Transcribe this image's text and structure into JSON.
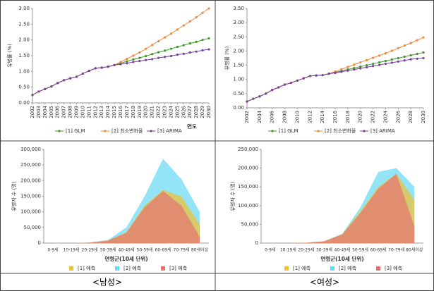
{
  "chart_data": [
    {
      "type": "line",
      "y_label": "유병률 (%)",
      "x_label": "연도",
      "x": [
        2002,
        2003,
        2004,
        2005,
        2006,
        2007,
        2008,
        2009,
        2010,
        2011,
        2012,
        2013,
        2014,
        2015,
        2016,
        2017,
        2018,
        2019,
        2020,
        2021,
        2022,
        2023,
        2024,
        2025,
        2026,
        2027,
        2028,
        2029,
        2030
      ],
      "xlim": [
        2002,
        2030
      ],
      "xticks": [
        2002,
        2003,
        2004,
        2005,
        2006,
        2007,
        2008,
        2009,
        2010,
        2011,
        2012,
        2013,
        2014,
        2015,
        2016,
        2017,
        2018,
        2019,
        2020,
        2021,
        2022,
        2023,
        2024,
        2025,
        2026,
        2027,
        2028,
        2029,
        2030
      ],
      "ylim": [
        0,
        3
      ],
      "yticks": [
        {
          "value": 0,
          "label": "0.00"
        },
        {
          "value": 0.5,
          "label": "0.50"
        },
        {
          "value": 1,
          "label": "1.00"
        },
        {
          "value": 1.5,
          "label": "1.50"
        },
        {
          "value": 2,
          "label": "2.00"
        },
        {
          "value": 2.5,
          "label": "2.50"
        },
        {
          "value": 3,
          "label": "3.00"
        }
      ],
      "series": [
        {
          "name": "[1] GLM",
          "color": "#3a9d23",
          "values": [
            0.25,
            0.36,
            0.44,
            0.52,
            0.63,
            0.72,
            0.78,
            0.83,
            0.93,
            1.02,
            1.1,
            1.12,
            1.15,
            1.2,
            1.26,
            1.32,
            1.38,
            1.43,
            1.49,
            1.55,
            1.61,
            1.66,
            1.72,
            1.78,
            1.83,
            1.89,
            1.94,
            2.0,
            2.05
          ]
        },
        {
          "name": "[2] 최소변화율",
          "color": "#f0893a",
          "values": [
            0.25,
            0.36,
            0.44,
            0.52,
            0.63,
            0.72,
            0.78,
            0.83,
            0.93,
            1.02,
            1.1,
            1.12,
            1.15,
            1.2,
            1.3,
            1.4,
            1.5,
            1.6,
            1.72,
            1.84,
            1.96,
            2.08,
            2.2,
            2.33,
            2.46,
            2.59,
            2.72,
            2.86,
            3.0
          ]
        },
        {
          "name": "[3] ARIMA",
          "color": "#7b3f9e",
          "values": [
            0.25,
            0.36,
            0.44,
            0.52,
            0.63,
            0.72,
            0.78,
            0.83,
            0.93,
            1.02,
            1.1,
            1.12,
            1.15,
            1.2,
            1.23,
            1.26,
            1.3,
            1.33,
            1.36,
            1.39,
            1.43,
            1.46,
            1.49,
            1.53,
            1.56,
            1.6,
            1.63,
            1.67,
            1.7
          ]
        }
      ]
    },
    {
      "type": "line",
      "y_label": "유병률 (%)",
      "x": [
        2002,
        2003,
        2004,
        2005,
        2006,
        2007,
        2008,
        2009,
        2010,
        2011,
        2012,
        2013,
        2014,
        2015,
        2016,
        2017,
        2018,
        2019,
        2020,
        2021,
        2022,
        2023,
        2024,
        2025,
        2026,
        2027,
        2028,
        2029,
        2030
      ],
      "xlim": [
        2002,
        2030
      ],
      "xticks": [
        2002,
        2004,
        2006,
        2008,
        2010,
        2012,
        2014,
        2016,
        2018,
        2020,
        2022,
        2024,
        2026,
        2028,
        2030
      ],
      "ylim": [
        0,
        3.5
      ],
      "yticks": [
        {
          "value": 0,
          "label": "0.00"
        },
        {
          "value": 0.5,
          "label": "0.50"
        },
        {
          "value": 1,
          "label": "1.00"
        },
        {
          "value": 1.5,
          "label": "1.50"
        },
        {
          "value": 2,
          "label": "2.00"
        },
        {
          "value": 2.5,
          "label": "2.50"
        },
        {
          "value": 3,
          "label": "3.00"
        },
        {
          "value": 3.5,
          "label": "3.50"
        }
      ],
      "series": [
        {
          "name": "[1] GLM",
          "color": "#3a9d23",
          "values": [
            0.22,
            0.32,
            0.4,
            0.5,
            0.63,
            0.72,
            0.82,
            0.88,
            0.96,
            1.04,
            1.12,
            1.14,
            1.15,
            1.2,
            1.25,
            1.3,
            1.35,
            1.4,
            1.45,
            1.5,
            1.55,
            1.6,
            1.65,
            1.7,
            1.75,
            1.8,
            1.85,
            1.9,
            1.95
          ]
        },
        {
          "name": "[2] 최소변화율",
          "color": "#f0893a",
          "values": [
            0.22,
            0.32,
            0.4,
            0.5,
            0.63,
            0.72,
            0.82,
            0.88,
            0.96,
            1.04,
            1.12,
            1.14,
            1.15,
            1.2,
            1.28,
            1.36,
            1.44,
            1.52,
            1.6,
            1.68,
            1.76,
            1.84,
            1.92,
            2.01,
            2.1,
            2.19,
            2.28,
            2.38,
            2.48
          ]
        },
        {
          "name": "[3] ARIMA",
          "color": "#7b3f9e",
          "values": [
            0.22,
            0.32,
            0.4,
            0.5,
            0.63,
            0.72,
            0.82,
            0.88,
            0.96,
            1.04,
            1.12,
            1.14,
            1.15,
            1.2,
            1.23,
            1.27,
            1.31,
            1.35,
            1.39,
            1.43,
            1.47,
            1.51,
            1.55,
            1.59,
            1.63,
            1.67,
            1.71,
            1.73,
            1.75
          ]
        }
      ]
    },
    {
      "type": "area",
      "y_label": "유병자 수 (명)",
      "x_label": "연령군(10세 단위)",
      "categories": [
        "0-9세",
        "10-19세",
        "20-29세",
        "30-39세",
        "40-49세",
        "50-59세",
        "60-69세",
        "70-79세",
        "80세이상"
      ],
      "ylim": [
        0,
        300000
      ],
      "yticks": [
        0,
        {
          "value": 50000,
          "label": "50,000"
        },
        {
          "value": 100000,
          "label": "100,000"
        },
        {
          "value": 150000,
          "label": "150,000"
        },
        {
          "value": 200000,
          "label": "200,000"
        },
        {
          "value": 250000,
          "label": "250,000"
        },
        {
          "value": 300000,
          "label": "300,000"
        }
      ],
      "series": [
        {
          "name": "[1] 예측",
          "color": "#f2c12e",
          "values": [
            0,
            0,
            1500,
            8000,
            35000,
            120000,
            170000,
            150000,
            60000
          ]
        },
        {
          "name": "[2] 예측",
          "color": "#66d9f5",
          "values": [
            0,
            0,
            2000,
            10000,
            50000,
            150000,
            270000,
            205000,
            100000
          ]
        },
        {
          "name": "[3] 예측",
          "color": "#e57373",
          "values": [
            0,
            0,
            1500,
            8000,
            33000,
            115000,
            167000,
            120000,
            20000
          ]
        }
      ]
    },
    {
      "type": "area",
      "y_label": "유병자 수 (명)",
      "x_label": "연령군(10세 단위)",
      "categories": [
        "0-9세",
        "10-19세",
        "20-29세",
        "30-39세",
        "40-49세",
        "50-59세",
        "60-69세",
        "70-79세",
        "80세이상"
      ],
      "ylim": [
        0,
        250000
      ],
      "yticks": [
        0,
        {
          "value": 50000,
          "label": "50,000"
        },
        {
          "value": 100000,
          "label": "100,000"
        },
        {
          "value": 150000,
          "label": "150,000"
        },
        {
          "value": 200000,
          "label": "200,000"
        },
        {
          "value": 250000,
          "label": "250,000"
        }
      ],
      "series": [
        {
          "name": "[1] 예측",
          "color": "#f2c12e",
          "values": [
            0,
            0,
            1000,
            5000,
            24000,
            85000,
            150000,
            185000,
            115000
          ]
        },
        {
          "name": "[2] 예측",
          "color": "#66d9f5",
          "values": [
            0,
            0,
            1000,
            5000,
            25000,
            95000,
            190000,
            200000,
            150000
          ]
        },
        {
          "name": "[3] 예측",
          "color": "#e57373",
          "values": [
            0,
            0,
            1000,
            5000,
            23000,
            80000,
            145000,
            185000,
            45000
          ]
        }
      ]
    }
  ],
  "captions": [
    "<남성>",
    "<여성>"
  ]
}
